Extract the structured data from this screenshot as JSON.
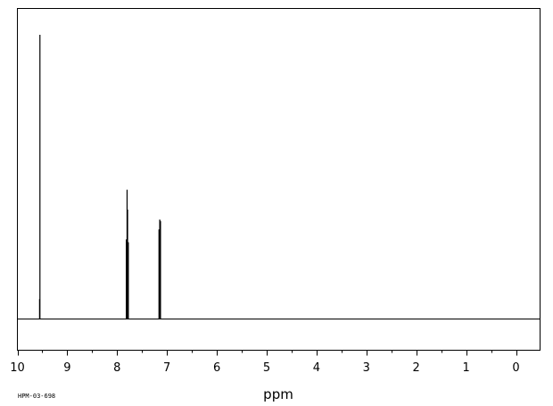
{
  "chart_data": {
    "type": "line",
    "title": "",
    "xlabel": "ppm",
    "ylabel": "",
    "xlim": [
      10,
      0
    ],
    "x_reversed": true,
    "x_major_ticks": [
      10,
      9,
      8,
      7,
      6,
      5,
      4,
      3,
      2,
      1,
      0
    ],
    "x_tick_labels": [
      "10",
      "9",
      "8",
      "7",
      "6",
      "5",
      "4",
      "3",
      "2",
      "1",
      "0"
    ],
    "x_minor_step": 0.5,
    "ylim": [
      0,
      1
    ],
    "grid": false,
    "legend": "none",
    "annotations": [
      "HPM-03-698"
    ],
    "series": [
      {
        "peaks": [
          {
            "ppm": 9.555,
            "intensity": 0.07
          },
          {
            "ppm": 9.548,
            "intensity": 1.0
          },
          {
            "ppm": 7.815,
            "intensity": 0.28
          },
          {
            "ppm": 7.8,
            "intensity": 0.455
          },
          {
            "ppm": 7.79,
            "intensity": 0.385
          },
          {
            "ppm": 7.775,
            "intensity": 0.27
          },
          {
            "ppm": 7.16,
            "intensity": 0.315
          },
          {
            "ppm": 7.145,
            "intensity": 0.35
          },
          {
            "ppm": 7.13,
            "intensity": 0.345
          }
        ]
      }
    ]
  },
  "colors": {
    "line": "#000000",
    "frame": "#000000",
    "background": "#ffffff"
  }
}
